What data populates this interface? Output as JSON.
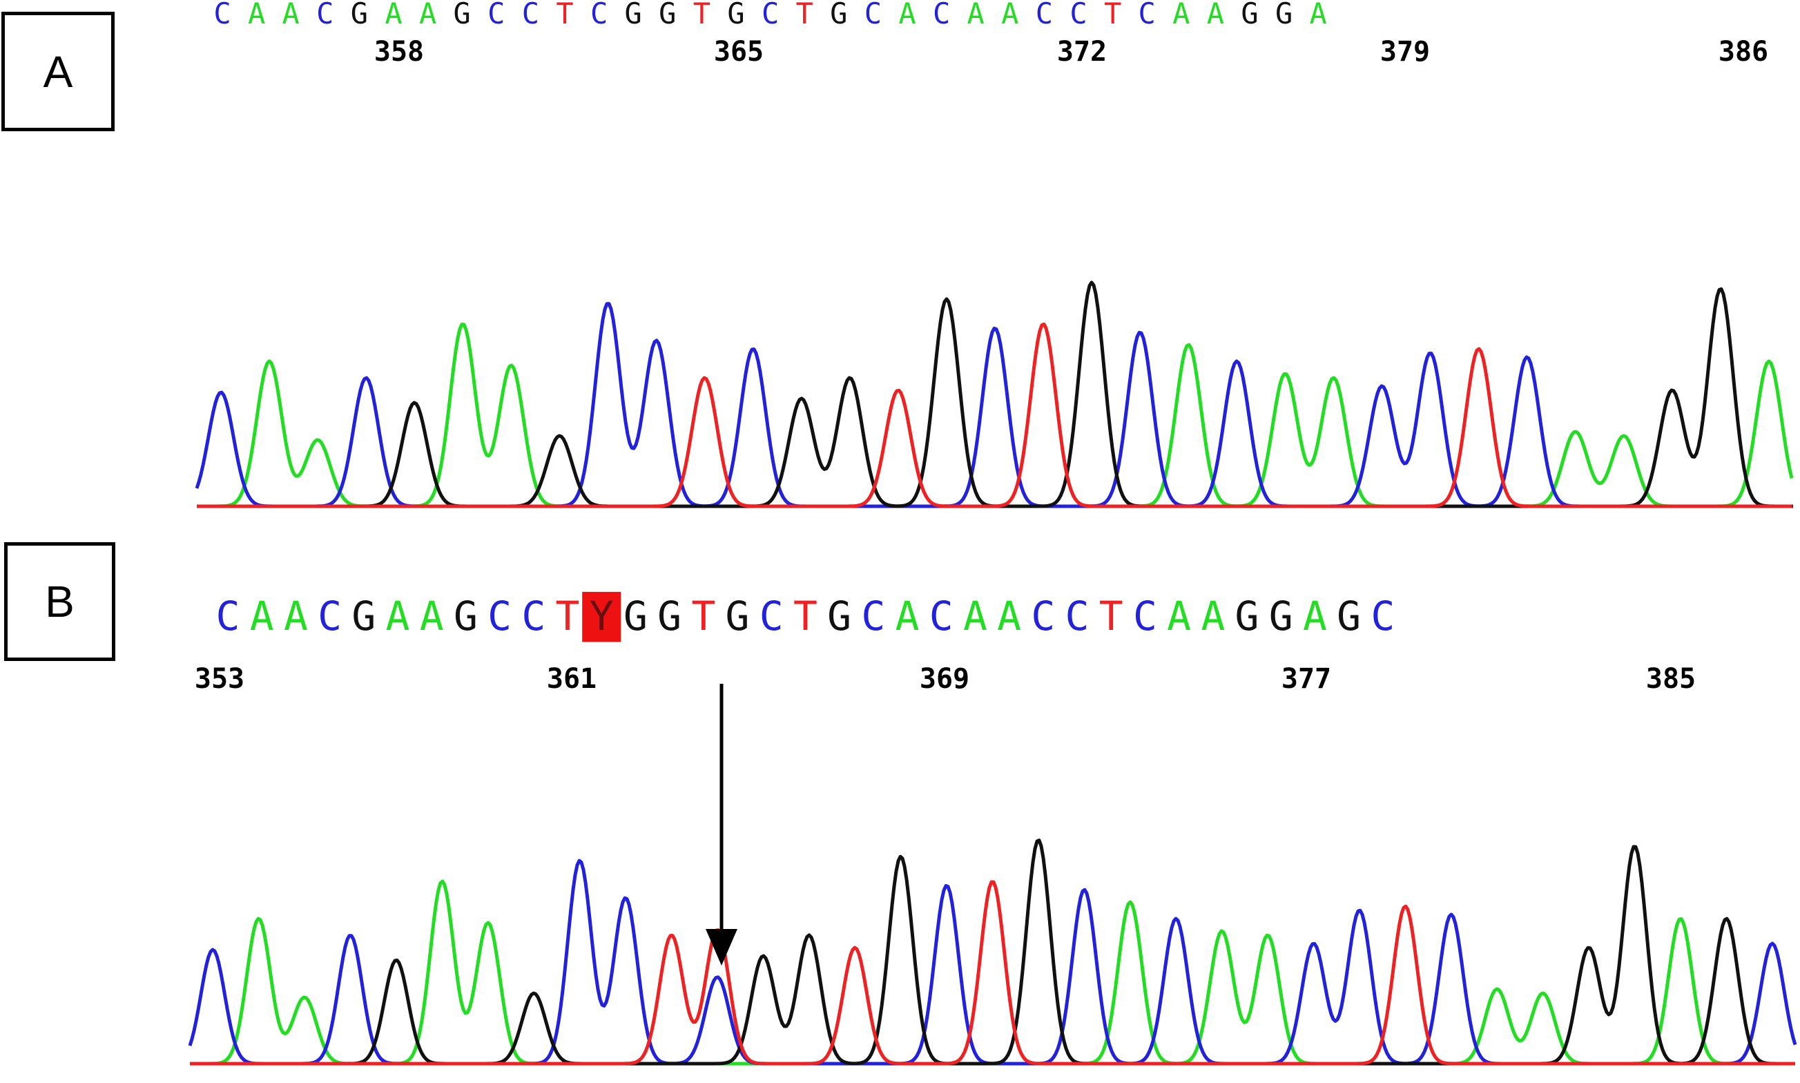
{
  "colors": {
    "A": "#22dd22",
    "C": "#2222dd",
    "G": "#111111",
    "T": "#ee2222",
    "Y": "#ee2222",
    "mutation_bg": "#ee1111"
  },
  "panels": [
    {
      "label": "A",
      "sequence": [
        "C",
        "A",
        "A",
        "C",
        "G",
        "A",
        "A",
        "G",
        "C",
        "C",
        "T",
        "C",
        "G",
        "G",
        "T",
        "G",
        "C",
        "T",
        "G",
        "C",
        "A",
        "C",
        "A",
        "A",
        "C",
        "C",
        "T",
        "C",
        "A",
        "A",
        "G",
        "G",
        "A"
      ],
      "positions": [
        "358",
        "365",
        "372",
        "379",
        "386"
      ],
      "highlight_index": null
    },
    {
      "label": "B",
      "sequence": [
        "C",
        "A",
        "A",
        "C",
        "G",
        "A",
        "A",
        "G",
        "C",
        "C",
        "T",
        "Y",
        "G",
        "G",
        "T",
        "G",
        "C",
        "T",
        "G",
        "C",
        "A",
        "C",
        "A",
        "A",
        "C",
        "C",
        "T",
        "C",
        "A",
        "A",
        "G",
        "G",
        "A",
        "G",
        "C"
      ],
      "positions": [
        "353",
        "361",
        "369",
        "377",
        "385"
      ],
      "highlight_index": 11
    }
  ]
}
